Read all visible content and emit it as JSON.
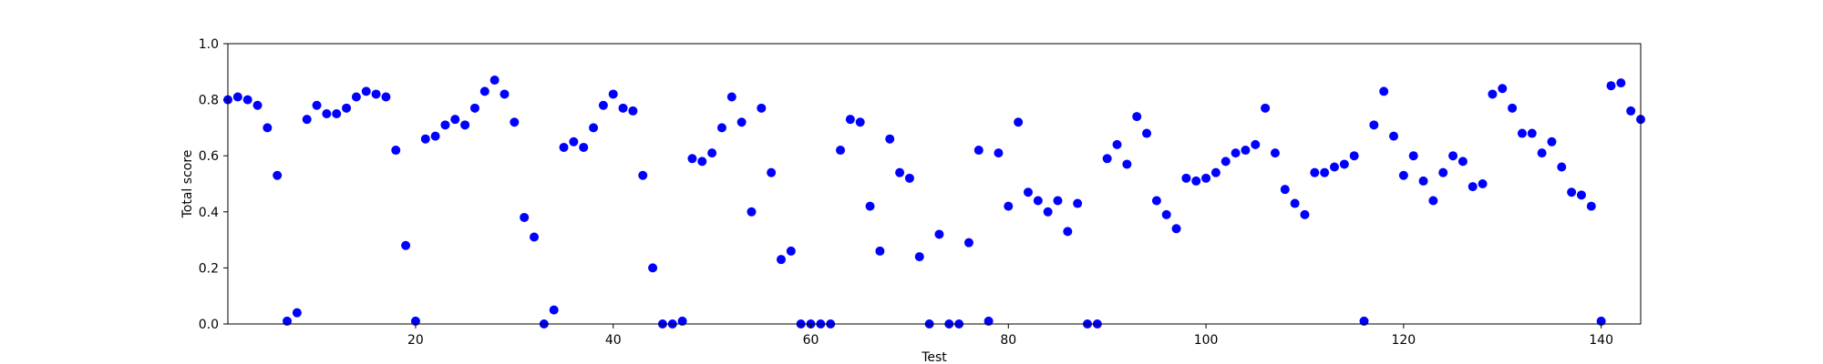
{
  "chart_data": {
    "type": "scatter",
    "title": "",
    "xlabel": "Test",
    "ylabel": "Total score",
    "xlim": [
      1,
      144
    ],
    "ylim": [
      0.0,
      1.0
    ],
    "xticks": [
      20,
      40,
      60,
      80,
      100,
      120,
      140
    ],
    "yticks": [
      "0.0",
      "0.2",
      "0.4",
      "0.6",
      "0.8",
      "1.0"
    ],
    "grid": false,
    "marker_color": "#0000ff",
    "series": [
      {
        "x": [
          1,
          2,
          3,
          4,
          5,
          6,
          7,
          8,
          9,
          10,
          11,
          12,
          13,
          14,
          15,
          16,
          17,
          18,
          19,
          20,
          21,
          22,
          23,
          24,
          25,
          26,
          27,
          28,
          29,
          30,
          31,
          32,
          33,
          34,
          35,
          36,
          37,
          38,
          39,
          40,
          41,
          42,
          43,
          44,
          45,
          46,
          47,
          48,
          49,
          50,
          51,
          52,
          53,
          54,
          55,
          56,
          57,
          58,
          59,
          60,
          61,
          62,
          63,
          64,
          65,
          66,
          67,
          68,
          69,
          70,
          71,
          72,
          73,
          74,
          75,
          76,
          77,
          78,
          79,
          80,
          81,
          82,
          83,
          84,
          85,
          86,
          87,
          88,
          89,
          90,
          91,
          92,
          93,
          94,
          95,
          96,
          97,
          98,
          99,
          100,
          101,
          102,
          103,
          104,
          105,
          106,
          107,
          108,
          109,
          110,
          111,
          112,
          113,
          114,
          115,
          116,
          117,
          118,
          119,
          120,
          121,
          122,
          123,
          124,
          125,
          126,
          127,
          128,
          129,
          130,
          131,
          132,
          133,
          134,
          135,
          136,
          137,
          138,
          139,
          140,
          141,
          142,
          143,
          144
        ],
        "y": [
          0.8,
          0.81,
          0.8,
          0.78,
          0.7,
          0.53,
          0.01,
          0.04,
          0.73,
          0.78,
          0.75,
          0.75,
          0.77,
          0.81,
          0.83,
          0.82,
          0.81,
          0.62,
          0.28,
          0.01,
          0.66,
          0.67,
          0.71,
          0.73,
          0.71,
          0.77,
          0.83,
          0.87,
          0.82,
          0.72,
          0.38,
          0.31,
          0.0,
          0.05,
          0.63,
          0.65,
          0.63,
          0.7,
          0.78,
          0.82,
          0.77,
          0.76,
          0.53,
          0.2,
          0.0,
          0.0,
          0.01,
          0.59,
          0.58,
          0.61,
          0.7,
          0.81,
          0.72,
          0.4,
          0.77,
          0.54,
          0.23,
          0.26,
          0.0,
          0.0,
          0.0,
          0.0,
          0.62,
          0.73,
          0.72,
          0.42,
          0.26,
          0.66,
          0.54,
          0.52,
          0.24,
          0.0,
          0.32,
          0.0,
          0.0,
          0.29,
          0.62,
          0.01,
          0.61,
          0.42,
          0.72,
          0.47,
          0.44,
          0.4,
          0.44,
          0.33,
          0.43,
          0.0,
          0.0,
          0.59,
          0.64,
          0.57,
          0.74,
          0.68,
          0.44,
          0.39,
          0.34,
          0.52,
          0.51,
          0.52,
          0.54,
          0.58,
          0.61,
          0.62,
          0.64,
          0.77,
          0.61,
          0.48,
          0.43,
          0.39,
          0.54,
          0.54,
          0.56,
          0.57,
          0.6,
          0.01,
          0.71,
          0.83,
          0.67,
          0.53,
          0.6,
          0.51,
          0.44,
          0.54,
          0.6,
          0.58,
          0.49,
          0.5,
          0.82,
          0.84,
          0.77,
          0.68,
          0.68,
          0.61,
          0.65,
          0.56,
          0.47,
          0.46,
          0.42,
          0.01,
          0.85,
          0.86,
          0.76,
          0.73
        ]
      }
    ]
  }
}
